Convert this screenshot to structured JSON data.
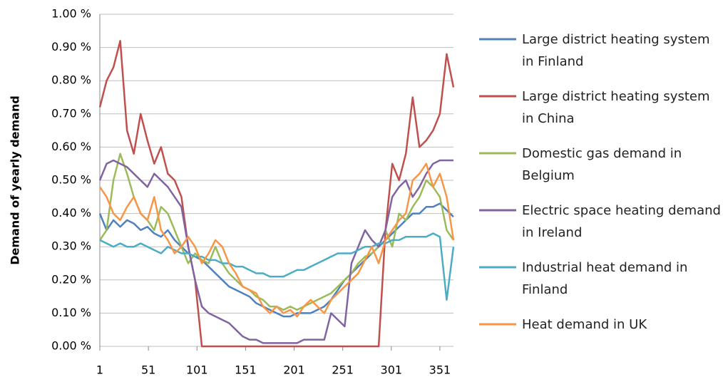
{
  "chart_data": {
    "type": "line",
    "y_label": "Demand of yearly demand",
    "x": [
      1,
      8,
      15,
      22,
      29,
      36,
      43,
      50,
      57,
      64,
      71,
      78,
      85,
      92,
      99,
      106,
      113,
      120,
      127,
      134,
      141,
      148,
      155,
      162,
      169,
      176,
      183,
      190,
      197,
      204,
      211,
      218,
      225,
      232,
      239,
      246,
      253,
      260,
      267,
      274,
      281,
      288,
      295,
      302,
      309,
      316,
      323,
      330,
      337,
      344,
      351,
      358,
      365
    ],
    "xlim": [
      1,
      365
    ],
    "xticks": [
      1,
      51,
      101,
      151,
      201,
      251,
      301,
      351
    ],
    "ylim": [
      0,
      1
    ],
    "yticks": [
      {
        "value": 0,
        "label": "0.00 %"
      },
      {
        "value": 0.1,
        "label": "0.10 %"
      },
      {
        "value": 0.2,
        "label": "0.20 %"
      },
      {
        "value": 0.3,
        "label": "0.30 %"
      },
      {
        "value": 0.4,
        "label": "0.40 %"
      },
      {
        "value": 0.5,
        "label": "0.50 %"
      },
      {
        "value": 0.6,
        "label": "0.60 %"
      },
      {
        "value": 0.7,
        "label": "0.70 %"
      },
      {
        "value": 0.8,
        "label": "0.80 %"
      },
      {
        "value": 0.9,
        "label": "0.90 %"
      },
      {
        "value": 1,
        "label": "1.00 %"
      }
    ],
    "grid": true,
    "series": [
      {
        "name": "Large district heating system in Finland",
        "color": "#4f81bd",
        "values": [
          0.4,
          0.35,
          0.38,
          0.36,
          0.38,
          0.37,
          0.35,
          0.36,
          0.34,
          0.33,
          0.35,
          0.32,
          0.3,
          0.28,
          0.27,
          0.26,
          0.24,
          0.22,
          0.2,
          0.18,
          0.17,
          0.16,
          0.15,
          0.13,
          0.12,
          0.11,
          0.1,
          0.09,
          0.09,
          0.1,
          0.1,
          0.1,
          0.11,
          0.12,
          0.14,
          0.17,
          0.2,
          0.22,
          0.24,
          0.26,
          0.28,
          0.3,
          0.32,
          0.34,
          0.36,
          0.38,
          0.4,
          0.4,
          0.42,
          0.42,
          0.43,
          0.41,
          0.39
        ]
      },
      {
        "name": "Large district heating system in China",
        "color": "#c0504d",
        "values": [
          0.72,
          0.8,
          0.84,
          0.92,
          0.65,
          0.58,
          0.7,
          0.62,
          0.55,
          0.6,
          0.52,
          0.5,
          0.45,
          0.3,
          0.2,
          0,
          0,
          0,
          0,
          0,
          0,
          0,
          0,
          0,
          0,
          0,
          0,
          0,
          0,
          0,
          0,
          0,
          0,
          0,
          0,
          0,
          0,
          0,
          0,
          0,
          0,
          0,
          0.35,
          0.55,
          0.5,
          0.58,
          0.75,
          0.6,
          0.62,
          0.65,
          0.7,
          0.88,
          0.78
        ]
      },
      {
        "name": "Domestic gas demand in Belgium",
        "color": "#9bbb59",
        "values": [
          0.32,
          0.35,
          0.5,
          0.58,
          0.52,
          0.45,
          0.4,
          0.38,
          0.35,
          0.42,
          0.4,
          0.35,
          0.3,
          0.25,
          0.28,
          0.26,
          0.25,
          0.3,
          0.25,
          0.22,
          0.2,
          0.18,
          0.17,
          0.15,
          0.14,
          0.12,
          0.12,
          0.11,
          0.12,
          0.11,
          0.12,
          0.13,
          0.14,
          0.15,
          0.16,
          0.18,
          0.2,
          0.22,
          0.25,
          0.27,
          0.28,
          0.3,
          0.35,
          0.3,
          0.4,
          0.38,
          0.42,
          0.45,
          0.5,
          0.48,
          0.45,
          0.35,
          0.32
        ]
      },
      {
        "name": "Electric space heating demand in Ireland",
        "color": "#8064a2",
        "values": [
          0.5,
          0.55,
          0.56,
          0.55,
          0.54,
          0.52,
          0.5,
          0.48,
          0.52,
          0.5,
          0.48,
          0.45,
          0.42,
          0.3,
          0.2,
          0.12,
          0.1,
          0.09,
          0.08,
          0.07,
          0.05,
          0.03,
          0.02,
          0.02,
          0.01,
          0.01,
          0.01,
          0.01,
          0.01,
          0.01,
          0.02,
          0.02,
          0.02,
          0.02,
          0.1,
          0.08,
          0.06,
          0.25,
          0.3,
          0.35,
          0.32,
          0.3,
          0.35,
          0.45,
          0.48,
          0.5,
          0.45,
          0.48,
          0.52,
          0.55,
          0.56,
          0.56,
          0.56
        ]
      },
      {
        "name": "Industrial heat demand in Finland",
        "color": "#4bacc6",
        "values": [
          0.32,
          0.31,
          0.3,
          0.31,
          0.3,
          0.3,
          0.31,
          0.3,
          0.29,
          0.28,
          0.3,
          0.29,
          0.28,
          0.28,
          0.27,
          0.27,
          0.26,
          0.26,
          0.25,
          0.25,
          0.24,
          0.24,
          0.23,
          0.22,
          0.22,
          0.21,
          0.21,
          0.21,
          0.22,
          0.23,
          0.23,
          0.24,
          0.25,
          0.26,
          0.27,
          0.28,
          0.28,
          0.28,
          0.29,
          0.3,
          0.3,
          0.31,
          0.31,
          0.32,
          0.32,
          0.33,
          0.33,
          0.33,
          0.33,
          0.34,
          0.33,
          0.14,
          0.3
        ]
      },
      {
        "name": "Heat demand in UK",
        "color": "#f79646",
        "values": [
          0.48,
          0.45,
          0.4,
          0.38,
          0.42,
          0.45,
          0.4,
          0.38,
          0.45,
          0.35,
          0.32,
          0.28,
          0.3,
          0.33,
          0.3,
          0.25,
          0.28,
          0.32,
          0.3,
          0.25,
          0.22,
          0.18,
          0.17,
          0.16,
          0.12,
          0.1,
          0.12,
          0.1,
          0.11,
          0.09,
          0.12,
          0.14,
          0.12,
          0.1,
          0.14,
          0.16,
          0.18,
          0.2,
          0.22,
          0.26,
          0.3,
          0.25,
          0.32,
          0.35,
          0.38,
          0.4,
          0.5,
          0.52,
          0.55,
          0.48,
          0.52,
          0.45,
          0.32
        ]
      }
    ]
  }
}
